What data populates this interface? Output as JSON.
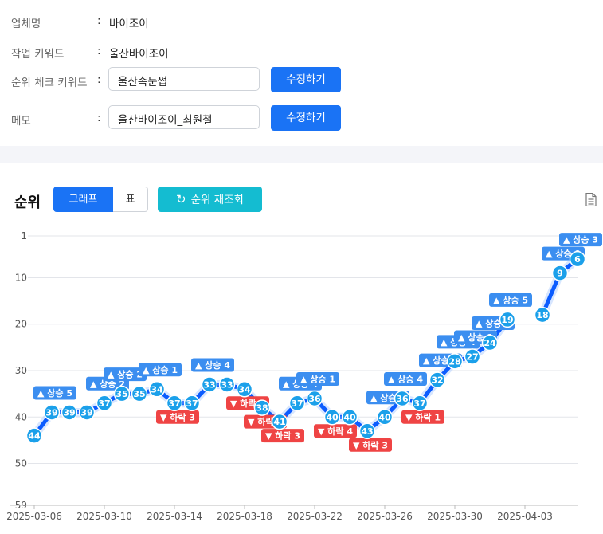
{
  "info": {
    "company_label": "업체명",
    "company_value": "바이조이",
    "keyword_label": "작업 키워드",
    "keyword_value": "울산바이조이",
    "rank_keyword_label": "순위 체크 키워드",
    "rank_keyword_value": "울산속눈썹",
    "rank_keyword_button": "수정하기",
    "memo_label": "메모",
    "memo_value": "울산바이조이_최원철",
    "memo_button": "수정하기",
    "colon": ":"
  },
  "toolbar": {
    "title": "순위",
    "tab_graph": "그래프",
    "tab_table": "표",
    "refresh_label": "순위 재조회",
    "active_tab": "그래프"
  },
  "colors": {
    "primary": "#1a73f5",
    "cyan": "#14bcd1",
    "line": "#0b5cff",
    "point": "#1ba0ea",
    "up_badge": "#3b8ef0",
    "down_badge": "#ef4444"
  },
  "chart_data": {
    "type": "line",
    "y_reversed": true,
    "ylim": [
      1,
      59
    ],
    "y_ticks": [
      1,
      10,
      20,
      30,
      40,
      50,
      59
    ],
    "x_ticks": [
      "2025-03-06",
      "2025-03-10",
      "2025-03-14",
      "2025-03-18",
      "2025-03-22",
      "2025-03-26",
      "2025-03-30",
      "2025-04-03"
    ],
    "grid": true,
    "series": [
      {
        "segments": [
          [
            {
              "x": "2025-03-06",
              "y": 44
            },
            {
              "x": "2025-03-07",
              "y": 39
            },
            {
              "x": "2025-03-08",
              "y": 39
            },
            {
              "x": "2025-03-09",
              "y": 39
            },
            {
              "x": "2025-03-10",
              "y": 37
            },
            {
              "x": "2025-03-11",
              "y": 35
            },
            {
              "x": "2025-03-12",
              "y": 35
            },
            {
              "x": "2025-03-13",
              "y": 34
            },
            {
              "x": "2025-03-14",
              "y": 37
            },
            {
              "x": "2025-03-15",
              "y": 37
            },
            {
              "x": "2025-03-16",
              "y": 33
            },
            {
              "x": "2025-03-17",
              "y": 33
            },
            {
              "x": "2025-03-18",
              "y": 34
            },
            {
              "x": "2025-03-19",
              "y": 38
            },
            {
              "x": "2025-03-20",
              "y": 41
            },
            {
              "x": "2025-03-21",
              "y": 37
            },
            {
              "x": "2025-03-22",
              "y": 36
            },
            {
              "x": "2025-03-23",
              "y": 40
            },
            {
              "x": "2025-03-24",
              "y": 40
            },
            {
              "x": "2025-03-25",
              "y": 43
            },
            {
              "x": "2025-03-26",
              "y": 40
            },
            {
              "x": "2025-03-27",
              "y": 36
            },
            {
              "x": "2025-03-28",
              "y": 37
            },
            {
              "x": "2025-03-29",
              "y": 32
            },
            {
              "x": "2025-03-30",
              "y": 28
            },
            {
              "x": "2025-03-31",
              "y": 27
            },
            {
              "x": "2025-04-01",
              "y": 24
            },
            {
              "x": "2025-04-02",
              "y": 19
            }
          ],
          [
            {
              "x": "2025-04-04",
              "y": 18
            },
            {
              "x": "2025-04-05",
              "y": 9
            },
            {
              "x": "2025-04-06",
              "y": 6
            }
          ]
        ]
      }
    ],
    "change_labels": [
      {
        "x": "2025-03-07",
        "text": "▲ 상승 5",
        "dir": "up"
      },
      {
        "x": "2025-03-10",
        "text": "▲ 상승 2",
        "dir": "up"
      },
      {
        "x": "2025-03-11",
        "text": "▲ 상승 2",
        "dir": "up"
      },
      {
        "x": "2025-03-13",
        "text": "▲ 상승 1",
        "dir": "up"
      },
      {
        "x": "2025-03-14",
        "text": "▼ 하락 3",
        "dir": "down"
      },
      {
        "x": "2025-03-16",
        "text": "▲ 상승 4",
        "dir": "up"
      },
      {
        "x": "2025-03-18",
        "text": "▼ 하락 1",
        "dir": "down"
      },
      {
        "x": "2025-03-19",
        "text": "▼ 하락 4",
        "dir": "down"
      },
      {
        "x": "2025-03-20",
        "text": "▼ 하락 3",
        "dir": "down"
      },
      {
        "x": "2025-03-21",
        "text": "▲ 상승 4",
        "dir": "up"
      },
      {
        "x": "2025-03-22",
        "text": "▲ 상승 1",
        "dir": "up"
      },
      {
        "x": "2025-03-23",
        "text": "▼ 하락 4",
        "dir": "down"
      },
      {
        "x": "2025-03-25",
        "text": "▼ 하락 3",
        "dir": "down"
      },
      {
        "x": "2025-03-26",
        "text": "▲ 상승 3",
        "dir": "up"
      },
      {
        "x": "2025-03-27",
        "text": "▲ 상승 4",
        "dir": "up"
      },
      {
        "x": "2025-03-28",
        "text": "▼ 하락 1",
        "dir": "down"
      },
      {
        "x": "2025-03-29",
        "text": "▲ 상승 5",
        "dir": "up"
      },
      {
        "x": "2025-03-30",
        "text": "▲ 상승 4",
        "dir": "up"
      },
      {
        "x": "2025-03-31",
        "text": "▲ 상승 1",
        "dir": "up"
      },
      {
        "x": "2025-04-01",
        "text": "▲ 상승 3",
        "dir": "up"
      },
      {
        "x": "2025-04-02",
        "text": "▲ 상승 5",
        "dir": "up"
      },
      {
        "x": "2025-04-05",
        "text": "▲ 상승 9",
        "dir": "up"
      },
      {
        "x": "2025-04-06",
        "text": "▲ 상승 3",
        "dir": "up"
      }
    ]
  }
}
